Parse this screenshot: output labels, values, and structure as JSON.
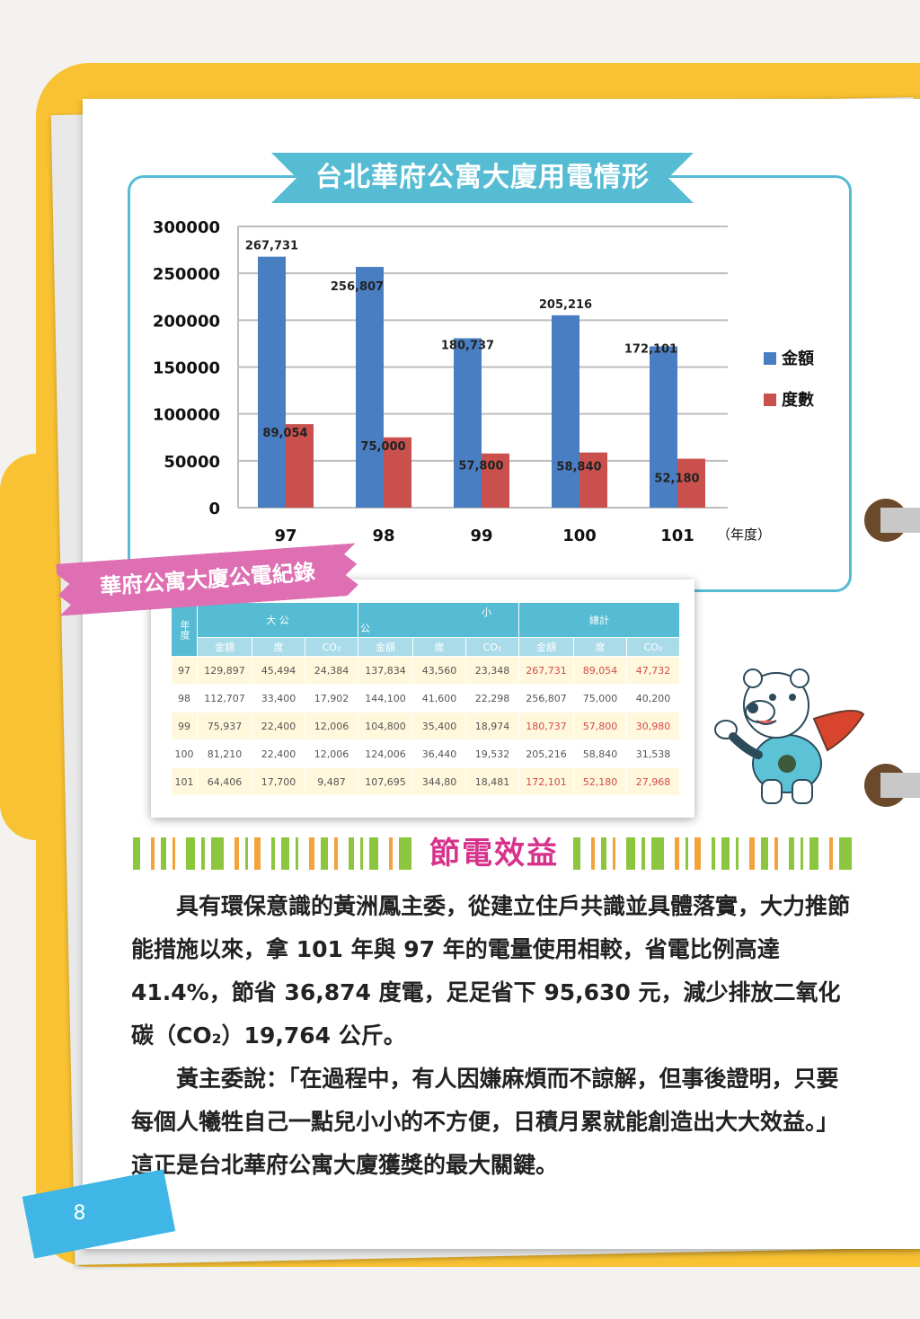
{
  "chart_title": "台北華府公寓大廈用電情形",
  "chart_data": {
    "type": "bar",
    "title": "台北華府公寓大廈用電情形",
    "categories": [
      "97",
      "98",
      "99",
      "100",
      "101"
    ],
    "xlabel": "（年度）",
    "ylim": [
      0,
      300000
    ],
    "yticks": [
      "300000",
      "250000",
      "200000",
      "150000",
      "100000",
      "50000",
      "0"
    ],
    "legend_position": "right",
    "series": [
      {
        "name": "金額",
        "color": "#4a7ec2",
        "values": [
          267731,
          256807,
          180737,
          205216,
          172101
        ],
        "labels": [
          "267,731",
          "256,807",
          "180,737",
          "205,216",
          "172,101"
        ]
      },
      {
        "name": "度數",
        "color": "#c9504c",
        "values": [
          89054,
          75000,
          57800,
          58840,
          52180
        ],
        "labels": [
          "89,054",
          "75,000",
          "57,800",
          "58,840",
          "52,180"
        ]
      }
    ]
  },
  "table": {
    "banner": "華府公寓大廈公電紀錄",
    "year_header": "年度",
    "groups": [
      "大 公",
      "小",
      "總計"
    ],
    "group_sub_left": "公",
    "sub_headers": [
      "金額",
      "度",
      "CO₂",
      "金額",
      "度",
      "CO₂",
      "金額",
      "度",
      "CO₂"
    ],
    "rows": [
      [
        "97",
        "129,897",
        "45,494",
        "24,384",
        "137,834",
        "43,560",
        "23,348",
        "267,731",
        "89,054",
        "47,732"
      ],
      [
        "98",
        "112,707",
        "33,400",
        "17,902",
        "144,100",
        "41,600",
        "22,298",
        "256,807",
        "75,000",
        "40,200"
      ],
      [
        "99",
        "75,937",
        "22,400",
        "12,006",
        "104,800",
        "35,400",
        "18,974",
        "180,737",
        "57,800",
        "30,980"
      ],
      [
        "100",
        "81,210",
        "22,400",
        "12,006",
        "124,006",
        "36,440",
        "19,532",
        "205,216",
        "58,840",
        "31,538"
      ],
      [
        "101",
        "64,406",
        "17,700",
        "9,487",
        "107,695",
        "344,80",
        "18,481",
        "172,101",
        "52,180",
        "27,968"
      ]
    ]
  },
  "section_title": "節電效益",
  "paragraphs": [
    "具有環保意識的黃洲鳳主委，從建立住戶共識並具體落實，大力推節能措施以來，拿 101 年與 97 年的電量使用相較，省電比例高達 41.4%，節省 36,874 度電，足足省下 95,630 元，減少排放二氧化碳（CO₂）19,764 公斤。",
    "黃主委說：「在過程中，有人因嫌麻煩而不諒解，但事後證明，只要每個人犧牲自己一點兒小小的不方便，日積月累就能創造出大大效益。」這正是台北華府公寓大廈獲獎的最大關鍵。"
  ],
  "page_number": "8",
  "colors": {
    "accent": "#56bcd3",
    "binder": "#f8c233",
    "pink": "#dd6fb2",
    "title_magenta": "#d7328c"
  }
}
